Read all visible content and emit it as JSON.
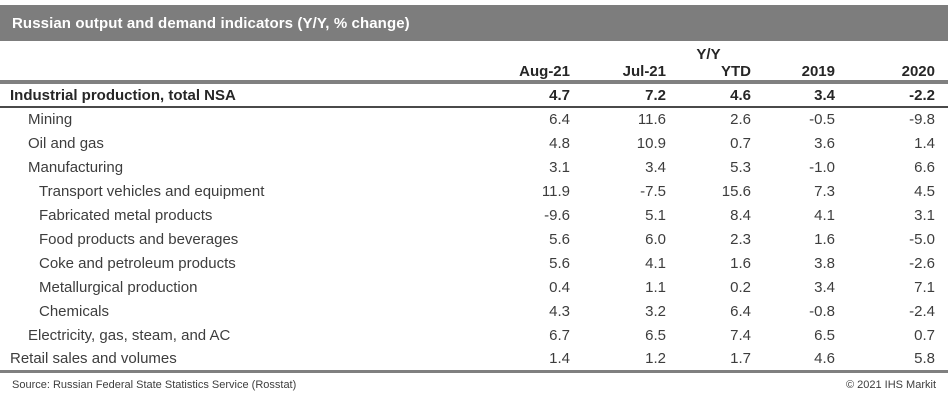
{
  "title_bar": {
    "title": "Russian output and demand indicators (Y/Y, % change)",
    "bg_color": "#7d7d7d",
    "text_color": "#ffffff"
  },
  "table": {
    "group_header": "Y/Y",
    "columns": [
      "Aug-21",
      "Jul-21",
      "YTD",
      "2019",
      "2020"
    ],
    "rows": [
      {
        "label": "Industrial production, total NSA",
        "indent": 0,
        "bold": true,
        "values": [
          "4.7",
          "7.2",
          "4.6",
          "3.4",
          "-2.2"
        ]
      },
      {
        "label": "Mining",
        "indent": 1,
        "bold": false,
        "values": [
          "6.4",
          "11.6",
          "2.6",
          "-0.5",
          "-9.8"
        ]
      },
      {
        "label": "Oil and gas",
        "indent": 1,
        "bold": false,
        "values": [
          "4.8",
          "10.9",
          "0.7",
          "3.6",
          "1.4"
        ]
      },
      {
        "label": "Manufacturing",
        "indent": 1,
        "bold": false,
        "values": [
          "3.1",
          "3.4",
          "5.3",
          "-1.0",
          "6.6"
        ]
      },
      {
        "label": "Transport vehicles and equipment",
        "indent": 2,
        "bold": false,
        "values": [
          "11.9",
          "-7.5",
          "15.6",
          "7.3",
          "4.5"
        ]
      },
      {
        "label": "Fabricated metal products",
        "indent": 2,
        "bold": false,
        "values": [
          "-9.6",
          "5.1",
          "8.4",
          "4.1",
          "3.1"
        ]
      },
      {
        "label": "Food products and beverages",
        "indent": 2,
        "bold": false,
        "values": [
          "5.6",
          "6.0",
          "2.3",
          "1.6",
          "-5.0"
        ]
      },
      {
        "label": "Coke and petroleum products",
        "indent": 2,
        "bold": false,
        "values": [
          "5.6",
          "4.1",
          "1.6",
          "3.8",
          "-2.6"
        ]
      },
      {
        "label": "Metallurgical production",
        "indent": 2,
        "bold": false,
        "values": [
          "0.4",
          "1.1",
          "0.2",
          "3.4",
          "7.1"
        ]
      },
      {
        "label": "Chemicals",
        "indent": 2,
        "bold": false,
        "values": [
          "4.3",
          "3.2",
          "6.4",
          "-0.8",
          "-2.4"
        ]
      },
      {
        "label": "Electricity, gas, steam, and AC",
        "indent": 1,
        "bold": false,
        "values": [
          "6.7",
          "6.5",
          "7.4",
          "6.5",
          "0.7"
        ]
      },
      {
        "label": "Retail sales and volumes",
        "indent": 0,
        "bold": false,
        "values": [
          "1.4",
          "1.2",
          "1.7",
          "4.6",
          "5.8"
        ]
      }
    ],
    "rule_colors": {
      "header_rule": "#808080",
      "bold_row_rule": "#4a4a4a",
      "bottom_rule": "#808080"
    }
  },
  "footer": {
    "source": "Source: Russian Federal State Statistics Service (Rosstat)",
    "copyright": "© 2021 IHS Markit"
  },
  "chart_data": {
    "type": "table",
    "title": "Russian output and demand indicators (Y/Y, % change)",
    "columns": [
      "Aug-21",
      "Jul-21",
      "Y/Y YTD",
      "2019",
      "2020"
    ],
    "series": [
      {
        "name": "Industrial production, total NSA",
        "values": [
          4.7,
          7.2,
          4.6,
          3.4,
          -2.2
        ]
      },
      {
        "name": "Mining",
        "values": [
          6.4,
          11.6,
          2.6,
          -0.5,
          -9.8
        ]
      },
      {
        "name": "Oil and gas",
        "values": [
          4.8,
          10.9,
          0.7,
          3.6,
          1.4
        ]
      },
      {
        "name": "Manufacturing",
        "values": [
          3.1,
          3.4,
          5.3,
          -1.0,
          6.6
        ]
      },
      {
        "name": "Transport vehicles and equipment",
        "values": [
          11.9,
          -7.5,
          15.6,
          7.3,
          4.5
        ]
      },
      {
        "name": "Fabricated metal products",
        "values": [
          -9.6,
          5.1,
          8.4,
          4.1,
          3.1
        ]
      },
      {
        "name": "Food products and beverages",
        "values": [
          5.6,
          6.0,
          2.3,
          1.6,
          -5.0
        ]
      },
      {
        "name": "Coke and petroleum products",
        "values": [
          5.6,
          4.1,
          1.6,
          3.8,
          -2.6
        ]
      },
      {
        "name": "Metallurgical production",
        "values": [
          0.4,
          1.1,
          0.2,
          3.4,
          7.1
        ]
      },
      {
        "name": "Chemicals",
        "values": [
          4.3,
          3.2,
          6.4,
          -0.8,
          -2.4
        ]
      },
      {
        "name": "Electricity, gas, steam, and AC",
        "values": [
          6.7,
          6.5,
          7.4,
          6.5,
          0.7
        ]
      },
      {
        "name": "Retail sales and volumes",
        "values": [
          1.4,
          1.2,
          1.7,
          4.6,
          5.8
        ]
      }
    ]
  }
}
